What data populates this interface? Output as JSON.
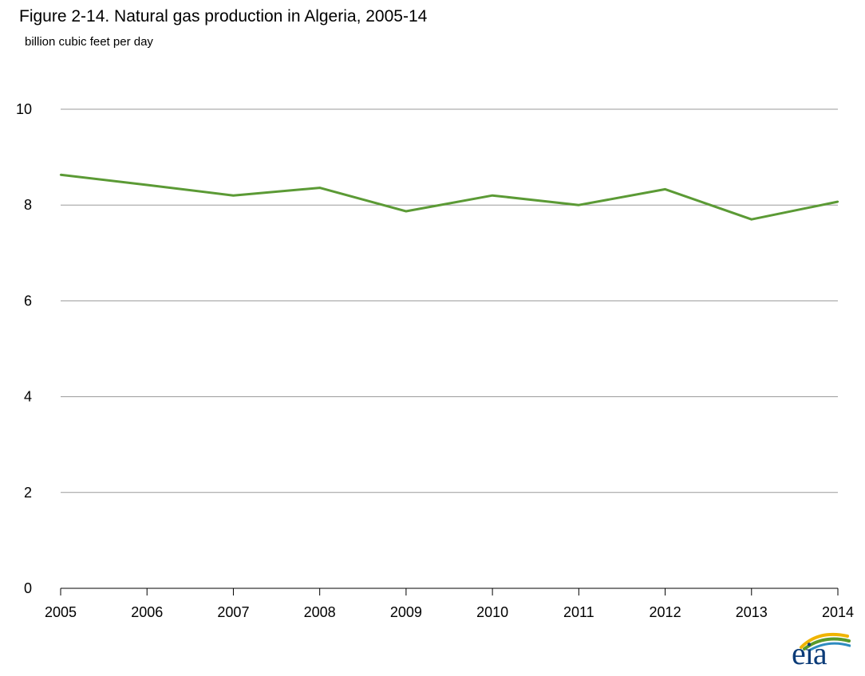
{
  "header": {
    "title": "Figure 2-14. Natural gas production in Algeria, 2005-14",
    "unit_label": "billion cubic feet per day"
  },
  "logo": {
    "text": "eia",
    "colors": [
      "#0b3b78",
      "#5a9a2a",
      "#f0b400",
      "#2e8bc0"
    ]
  },
  "chart_data": {
    "type": "line",
    "title": "Figure 2-14. Natural gas production in Algeria, 2005-14",
    "ylabel": "billion cubic feet per day",
    "xlabel": "",
    "categories": [
      "2005",
      "2006",
      "2007",
      "2008",
      "2009",
      "2010",
      "2011",
      "2012",
      "2013",
      "2014"
    ],
    "series": [
      {
        "values": [
          8.63,
          8.42,
          8.2,
          8.36,
          7.87,
          8.2,
          8.0,
          8.33,
          7.7,
          8.07
        ],
        "color": "#5b9a35"
      }
    ],
    "ylim": [
      0,
      10
    ],
    "yticks": [
      "0",
      "2",
      "4",
      "6",
      "8",
      "10"
    ],
    "grid": true,
    "legend": "none"
  }
}
